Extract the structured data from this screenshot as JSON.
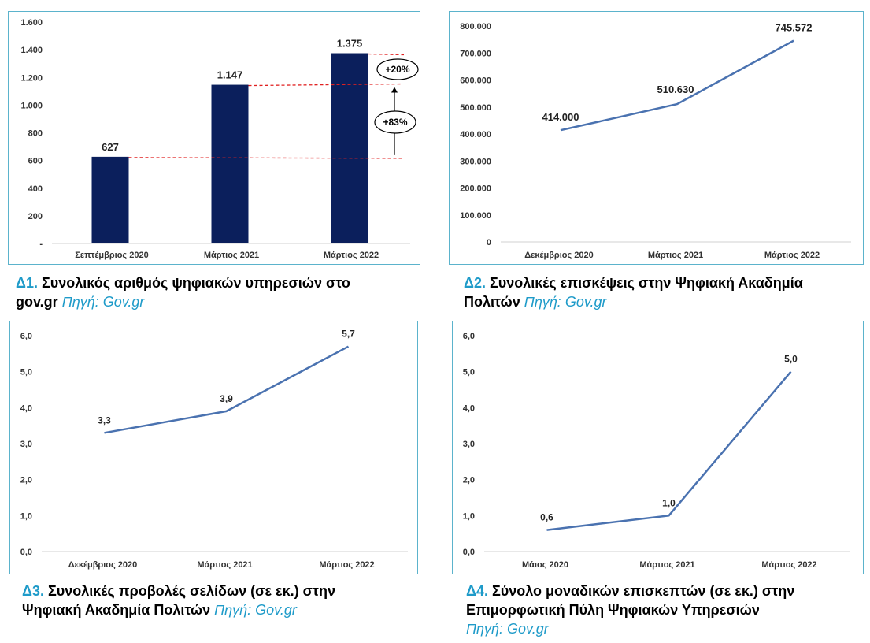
{
  "colors": {
    "bar": "#0b1f5c",
    "line": "#4a72b0",
    "border": "#5bb3cc",
    "accent": "#1f9bc9",
    "ref": "#e02020"
  },
  "charts": [
    {
      "caption_num": "Δ1.",
      "caption_line1": "Συνολικός αριθμός ψηφιακών υπηρεσιών στο",
      "caption_line2": "gov.gr",
      "caption_src": "Πηγή: Gov.gr",
      "yticks": [
        "-",
        "200",
        "400",
        "600",
        "800",
        "1.000",
        "1.200",
        "1.400",
        "1.600"
      ],
      "chart_data": {
        "type": "bar",
        "categories": [
          "Σεπτέμβριος 2020",
          "Μάρτιος 2021",
          "Μάρτιος 2022"
        ],
        "values": [
          627,
          1147,
          1375
        ],
        "data_labels": [
          "627",
          "1.147",
          "1.375"
        ],
        "ylim": [
          0,
          1600
        ],
        "annotations": [
          "+20%",
          "+83%"
        ],
        "grid": false
      }
    },
    {
      "caption_num": "Δ2.",
      "caption_line1": "Συνολικές επισκέψεις στην Ψηφιακή Ακαδημία",
      "caption_line2": "Πολιτών",
      "caption_src": "Πηγή: Gov.gr",
      "yticks": [
        "0",
        "100.000",
        "200.000",
        "300.000",
        "400.000",
        "500.000",
        "600.000",
        "700.000",
        "800.000"
      ],
      "chart_data": {
        "type": "line",
        "categories": [
          "Δεκέμβριος 2020",
          "Μάρτιος 2021",
          "Μάρτιος 2022"
        ],
        "values": [
          414000,
          510630,
          745572
        ],
        "data_labels": [
          "414.000",
          "510.630",
          "745.572"
        ],
        "ylim": [
          0,
          800000
        ],
        "grid": false
      }
    },
    {
      "caption_num": "Δ3.",
      "caption_line1": "Συνολικές προβολές σελίδων (σε εκ.) στην",
      "caption_line2": "Ψηφιακή Ακαδημία Πολιτών",
      "caption_src": "Πηγή: Gov.gr",
      "yticks": [
        "0,0",
        "1,0",
        "2,0",
        "3,0",
        "4,0",
        "5,0",
        "6,0"
      ],
      "chart_data": {
        "type": "line",
        "categories": [
          "Δεκέμβριος 2020",
          "Μάρτιος 2021",
          "Μάρτιος 2022"
        ],
        "values": [
          3.3,
          3.9,
          5.7
        ],
        "data_labels": [
          "3,3",
          "3,9",
          "5,7"
        ],
        "ylim": [
          0,
          6
        ],
        "grid": false
      }
    },
    {
      "caption_num": "Δ4.",
      "caption_line1": "Σύνολο μοναδικών επισκεπτών (σε εκ.) στην",
      "caption_line2": "Επιμορφωτική Πύλη Ψηφιακών Υπηρεσιών",
      "caption_src": "Πηγή: Gov.gr",
      "yticks": [
        "0,0",
        "1,0",
        "2,0",
        "3,0",
        "4,0",
        "5,0",
        "6,0"
      ],
      "chart_data": {
        "type": "line",
        "categories": [
          "Μάιος 2020",
          "Μάρτιος 2021",
          "Μάρτιος 2022"
        ],
        "values": [
          0.6,
          1.0,
          5.0
        ],
        "data_labels": [
          "0,6",
          "1,0",
          "5,0"
        ],
        "ylim": [
          0,
          6
        ],
        "grid": false
      }
    }
  ]
}
